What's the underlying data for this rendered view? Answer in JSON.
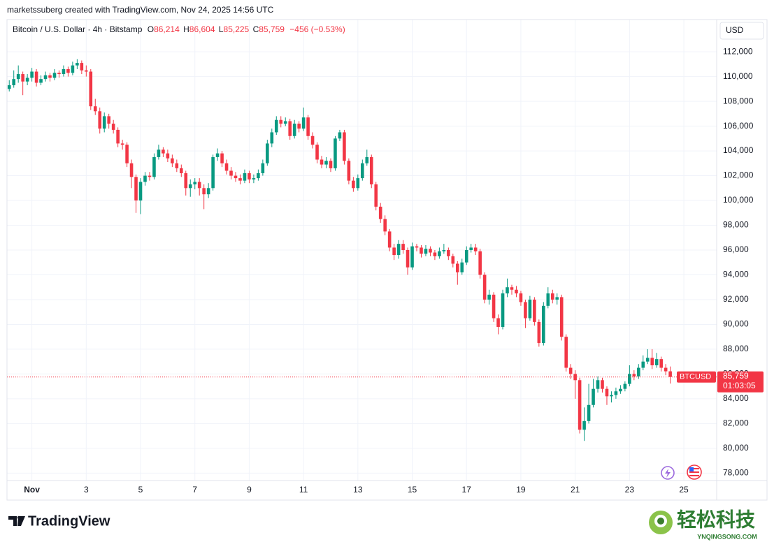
{
  "attribution": "marketssuberg created with TradingView.com, Nov 24, 2025 14:56 UTC",
  "legend": {
    "symbol": "Bitcoin / U.S. Dollar · 4h · Bitstamp",
    "ohlc": [
      {
        "label": "O",
        "value": "86,214"
      },
      {
        "label": "H",
        "value": "86,604"
      },
      {
        "label": "L",
        "value": "85,225"
      },
      {
        "label": "C",
        "value": "85,759"
      }
    ],
    "change": "−456 (−0.53%)"
  },
  "currency": "USD",
  "price_tag": {
    "symbol": "BTCUSD",
    "price": "85,759",
    "countdown": "01:03:05"
  },
  "brand": "TradingView",
  "watermark": {
    "name": "轻松科技",
    "site": "YNQINGSONG.COM"
  },
  "chart_data": {
    "type": "candlestick",
    "up_color": "#089981",
    "down_color": "#f23645",
    "grid": true,
    "xlim": [
      -22,
      605
    ],
    "ylim": [
      77400,
      114600
    ],
    "xticks": [
      {
        "value": 0,
        "label": "Nov"
      },
      {
        "value": 48,
        "label": "3"
      },
      {
        "value": 96,
        "label": "5"
      },
      {
        "value": 144,
        "label": "7"
      },
      {
        "value": 192,
        "label": "9"
      },
      {
        "value": 240,
        "label": "11"
      },
      {
        "value": 288,
        "label": "13"
      },
      {
        "value": 336,
        "label": "15"
      },
      {
        "value": 384,
        "label": "17"
      },
      {
        "value": 432,
        "label": "19"
      },
      {
        "value": 480,
        "label": "21"
      },
      {
        "value": 528,
        "label": "23"
      },
      {
        "value": 576,
        "label": "25"
      }
    ],
    "yticks": [
      {
        "value": 78000,
        "label": "78,000"
      },
      {
        "value": 80000,
        "label": "80,000"
      },
      {
        "value": 82000,
        "label": "82,000"
      },
      {
        "value": 84000,
        "label": "84,000"
      },
      {
        "value": 86000,
        "label": "86,000"
      },
      {
        "value": 88000,
        "label": "88,000"
      },
      {
        "value": 90000,
        "label": "90,000"
      },
      {
        "value": 92000,
        "label": "92,000"
      },
      {
        "value": 94000,
        "label": "94,000"
      },
      {
        "value": 96000,
        "label": "96,000"
      },
      {
        "value": 98000,
        "label": "98,000"
      },
      {
        "value": 100000,
        "label": "100,000"
      },
      {
        "value": 102000,
        "label": "102,000"
      },
      {
        "value": 104000,
        "label": "104,000"
      },
      {
        "value": 106000,
        "label": "106,000"
      },
      {
        "value": 108000,
        "label": "108,000"
      },
      {
        "value": 110000,
        "label": "110,000"
      },
      {
        "value": 112000,
        "label": "112,000"
      }
    ],
    "x": [
      -20,
      -16,
      -12,
      -8,
      -4,
      0,
      4,
      8,
      12,
      16,
      20,
      24,
      28,
      32,
      36,
      40,
      44,
      48,
      52,
      56,
      60,
      64,
      68,
      72,
      76,
      80,
      84,
      88,
      92,
      96,
      100,
      104,
      108,
      112,
      116,
      120,
      124,
      128,
      132,
      136,
      140,
      144,
      148,
      152,
      156,
      160,
      164,
      168,
      172,
      176,
      180,
      184,
      188,
      192,
      196,
      200,
      204,
      208,
      212,
      216,
      220,
      224,
      228,
      232,
      236,
      240,
      244,
      248,
      252,
      256,
      260,
      264,
      268,
      272,
      276,
      280,
      284,
      288,
      292,
      296,
      300,
      304,
      308,
      312,
      316,
      320,
      324,
      328,
      332,
      336,
      340,
      344,
      348,
      352,
      356,
      360,
      364,
      368,
      372,
      376,
      380,
      384,
      388,
      392,
      396,
      400,
      404,
      408,
      412,
      416,
      420,
      424,
      428,
      432,
      436,
      440,
      444,
      448,
      452,
      456,
      460,
      464,
      468,
      472,
      476,
      480,
      484,
      488,
      492,
      496,
      500,
      504,
      508,
      512,
      516,
      520,
      524,
      528,
      532,
      536,
      540,
      544,
      548,
      552,
      556,
      560,
      564
    ],
    "open": [
      109000,
      109300,
      109800,
      110200,
      109600,
      109900,
      110400,
      109500,
      109800,
      110100,
      109900,
      110300,
      110200,
      110600,
      110300,
      110900,
      111100,
      110500,
      110400,
      107600,
      107200,
      105800,
      106800,
      106200,
      105700,
      104600,
      104500,
      103000,
      101900,
      100000,
      101500,
      102000,
      101900,
      103500,
      104100,
      103800,
      103400,
      103000,
      102600,
      102200,
      101000,
      101300,
      101500,
      101000,
      100500,
      101000,
      103500,
      103800,
      103000,
      102400,
      102000,
      101800,
      101600,
      102200,
      101700,
      101800,
      102200,
      103000,
      104600,
      105500,
      106500,
      106200,
      106400,
      105200,
      106200,
      105800,
      106700,
      105200,
      104500,
      103300,
      102900,
      103200,
      102600,
      105000,
      105500,
      103200,
      101600,
      101000,
      101800,
      103000,
      103500,
      101300,
      99500,
      98500,
      97500,
      96200,
      95600,
      96500,
      96000,
      94600,
      96300,
      96200,
      95700,
      96100,
      95800,
      95500,
      95900,
      96000,
      95500,
      94900,
      94200,
      95000,
      96000,
      96200,
      95900,
      94000,
      92000,
      92400,
      90500,
      89800,
      92500,
      93000,
      92800,
      92500,
      91800,
      90500,
      92000,
      90200,
      88500,
      91500,
      92500,
      92000,
      92200,
      89000,
      86500,
      86000,
      85500,
      81500,
      82200,
      83500,
      84800,
      85500,
      84800,
      84200,
      84300,
      84600,
      84800,
      85200,
      86000,
      85800,
      86500,
      87000,
      87300,
      86700,
      87200,
      86500,
      86214
    ],
    "high": [
      109700,
      110500,
      110900,
      110400,
      110200,
      110700,
      110600,
      110100,
      110400,
      110300,
      110600,
      110500,
      110900,
      110800,
      111200,
      111400,
      111300,
      110900,
      110600,
      108200,
      107500,
      107100,
      107000,
      106500,
      105900,
      104900,
      104700,
      103300,
      102100,
      101800,
      102300,
      102300,
      103800,
      104500,
      104300,
      104100,
      103700,
      103300,
      102900,
      102400,
      101700,
      101800,
      101800,
      101300,
      101400,
      103700,
      104200,
      104000,
      103300,
      102700,
      102300,
      102100,
      102500,
      102400,
      102100,
      102500,
      103300,
      104900,
      105800,
      106800,
      106800,
      106700,
      106600,
      106500,
      106400,
      107500,
      106900,
      105500,
      104700,
      103600,
      103500,
      103400,
      105200,
      105700,
      105700,
      103400,
      101900,
      102100,
      103300,
      104100,
      103700,
      101500,
      99800,
      98800,
      97700,
      96500,
      96800,
      96800,
      96200,
      96600,
      96500,
      96400,
      96400,
      96300,
      96000,
      96200,
      96500,
      96200,
      95700,
      95100,
      95300,
      96300,
      96500,
      96500,
      96100,
      94200,
      92800,
      92600,
      90800,
      92800,
      93700,
      93200,
      93100,
      92700,
      92000,
      92300,
      92200,
      90400,
      91800,
      93000,
      92800,
      92500,
      92400,
      89200,
      86800,
      86300,
      85700,
      83300,
      85200,
      85600,
      85800,
      85700,
      85000,
      84600,
      84900,
      85100,
      85400,
      86700,
      86300,
      86800,
      87500,
      88000,
      88000,
      87700,
      87400,
      86800,
      86604
    ],
    "low": [
      108800,
      109100,
      109500,
      108500,
      109300,
      109600,
      109200,
      109300,
      109600,
      109600,
      109700,
      109900,
      110000,
      110000,
      110100,
      110600,
      110200,
      110000,
      107300,
      106900,
      105400,
      105500,
      105800,
      105400,
      104300,
      104100,
      102700,
      101000,
      99000,
      98900,
      101200,
      101600,
      101700,
      103300,
      103500,
      103100,
      102700,
      102300,
      101900,
      100400,
      100300,
      100900,
      100400,
      99300,
      100200,
      100800,
      103200,
      102700,
      102100,
      101700,
      101500,
      101300,
      101400,
      101400,
      101400,
      101600,
      102000,
      102800,
      104300,
      105300,
      105900,
      106000,
      104900,
      105000,
      105500,
      105600,
      104900,
      104200,
      103000,
      102600,
      102600,
      102300,
      102400,
      104800,
      102900,
      101300,
      100700,
      100800,
      101600,
      102800,
      101000,
      99200,
      98200,
      97200,
      95900,
      95200,
      95300,
      95700,
      94000,
      94400,
      95900,
      95400,
      95500,
      95500,
      95200,
      95300,
      95700,
      95200,
      94600,
      93200,
      94000,
      94800,
      95800,
      95600,
      93700,
      91700,
      91600,
      90200,
      89200,
      89600,
      92200,
      92400,
      92200,
      91500,
      89700,
      90300,
      89900,
      88200,
      88300,
      91300,
      91700,
      91600,
      88700,
      86200,
      85600,
      84000,
      81200,
      80600,
      82000,
      83300,
      84500,
      84500,
      83500,
      83700,
      84000,
      84400,
      84600,
      85000,
      85500,
      85600,
      86300,
      86800,
      86400,
      86500,
      86200,
      85900,
      85225
    ],
    "close": [
      109300,
      109800,
      110200,
      109600,
      109900,
      110400,
      109500,
      109800,
      110100,
      109900,
      110300,
      110200,
      110600,
      110300,
      110900,
      111100,
      110500,
      110400,
      107600,
      107200,
      105800,
      106800,
      106200,
      105700,
      104600,
      104500,
      103000,
      101900,
      100000,
      101500,
      102000,
      101900,
      103500,
      104100,
      103800,
      103400,
      103000,
      102600,
      102200,
      101000,
      101300,
      101500,
      101000,
      100500,
      101000,
      103500,
      103800,
      103000,
      102400,
      102000,
      101800,
      101600,
      102200,
      101700,
      101800,
      102200,
      103000,
      104600,
      105500,
      106500,
      106200,
      106400,
      105200,
      106200,
      105800,
      106700,
      105200,
      104500,
      103300,
      102900,
      103200,
      102600,
      105000,
      105500,
      103200,
      101600,
      101000,
      101800,
      103000,
      103500,
      101300,
      99500,
      98500,
      97500,
      96200,
      95600,
      96500,
      96000,
      94600,
      96300,
      96200,
      95700,
      96100,
      95800,
      95500,
      95900,
      96000,
      95500,
      94900,
      94200,
      95000,
      96000,
      96200,
      95900,
      94000,
      92000,
      92400,
      90500,
      89800,
      92500,
      93000,
      92800,
      92500,
      91800,
      90500,
      92000,
      90200,
      88500,
      91500,
      92500,
      92000,
      92200,
      89000,
      86500,
      86000,
      85500,
      81500,
      82200,
      83500,
      84800,
      85500,
      84800,
      84200,
      84300,
      84600,
      84800,
      85200,
      86000,
      85800,
      86500,
      87000,
      87300,
      86700,
      87200,
      86500,
      86214,
      85759
    ]
  }
}
